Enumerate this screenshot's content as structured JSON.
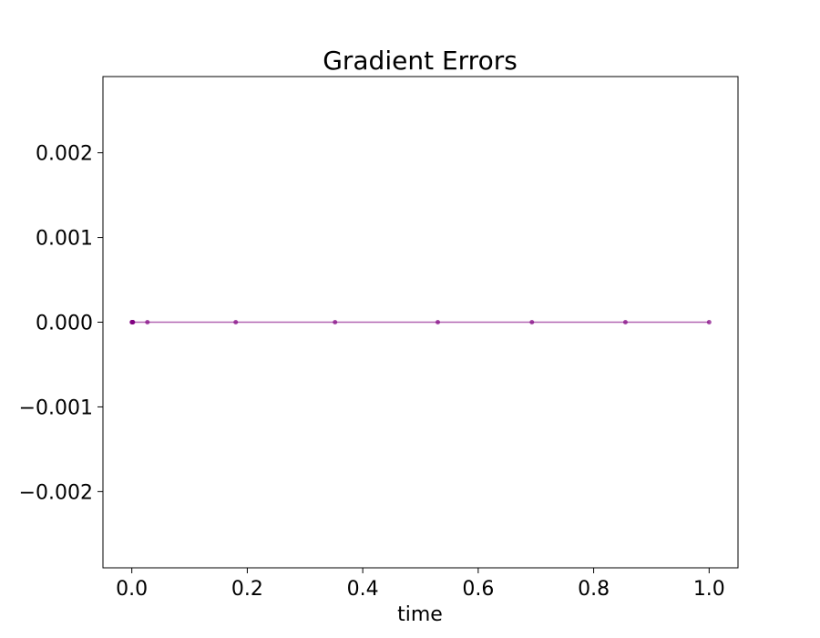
{
  "chart_data": {
    "type": "line",
    "title": "Gradient Errors",
    "xlabel": "time",
    "ylabel": "",
    "xlim": [
      -0.05,
      1.05
    ],
    "ylim": [
      -0.0029,
      0.0029
    ],
    "xticks": [
      0.0,
      0.2,
      0.4,
      0.6,
      0.8,
      1.0
    ],
    "xtick_labels": [
      "0.0",
      "0.2",
      "0.4",
      "0.6",
      "0.8",
      "1.0"
    ],
    "yticks": [
      0.002,
      0.001,
      0.0,
      -0.001,
      -0.002
    ],
    "ytick_labels": [
      "0.002",
      "0.001",
      "0.000",
      "−0.001",
      "−0.002"
    ],
    "grid": false,
    "series": [
      {
        "color": "#800080",
        "x": [
          0.0,
          0.0005,
          0.001,
          0.0015,
          0.002,
          0.027,
          0.18,
          0.352,
          0.53,
          0.693,
          0.855,
          1.0
        ],
        "y": [
          0,
          0,
          0,
          0,
          0,
          0,
          0,
          0,
          0,
          0,
          0,
          0
        ]
      }
    ]
  }
}
